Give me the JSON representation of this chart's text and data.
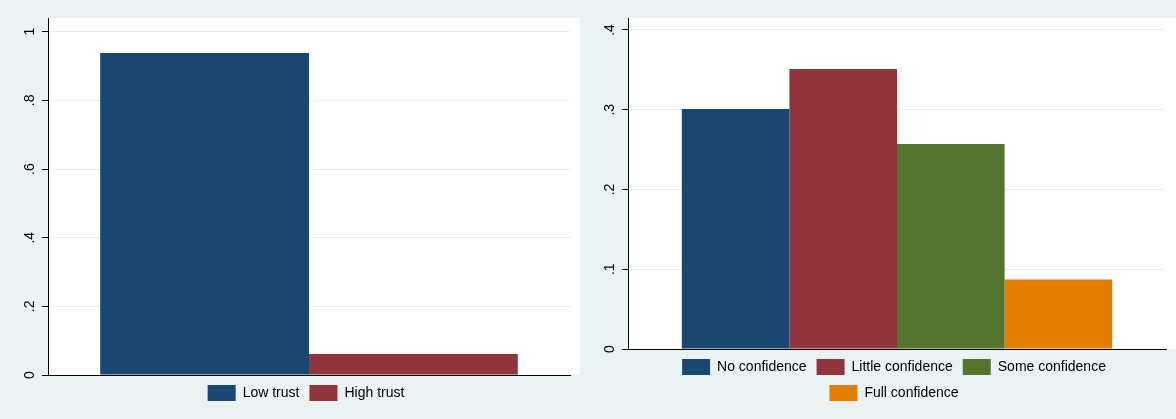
{
  "chart_data": [
    {
      "type": "bar",
      "categories": [
        null
      ],
      "series": [
        {
          "name": "Low trust",
          "color": "#1a476f",
          "values": [
            0.938
          ]
        },
        {
          "name": "High trust",
          "color": "#90353b",
          "values": [
            0.061
          ]
        }
      ],
      "ylim": [
        0,
        1.04
      ],
      "yticks": [
        {
          "value": 0,
          "label": "0"
        },
        {
          "value": 0.2,
          "label": ".2"
        },
        {
          "value": 0.4,
          "label": ".4"
        },
        {
          "value": 0.6,
          "label": ".6"
        },
        {
          "value": 0.8,
          "label": ".8"
        },
        {
          "value": 1,
          "label": "1"
        }
      ],
      "grid": "y",
      "legend": "bottom"
    },
    {
      "type": "bar",
      "categories": [
        null
      ],
      "series": [
        {
          "name": "No confidence",
          "color": "#1a476f",
          "values": [
            0.301
          ]
        },
        {
          "name": "Little confidence",
          "color": "#90353b",
          "values": [
            0.351
          ]
        },
        {
          "name": "Some confidence",
          "color": "#55752f",
          "values": [
            0.257
          ]
        },
        {
          "name": "Full confidence",
          "color": "#e37e00",
          "values": [
            0.087
          ]
        }
      ],
      "ylim": [
        0,
        0.415
      ],
      "yticks": [
        {
          "value": 0,
          "label": "0"
        },
        {
          "value": 0.1,
          "label": ".1"
        },
        {
          "value": 0.2,
          "label": ".2"
        },
        {
          "value": 0.3,
          "label": ".3"
        },
        {
          "value": 0.4,
          "label": ".4"
        }
      ],
      "grid": "y",
      "legend": "bottom"
    }
  ]
}
